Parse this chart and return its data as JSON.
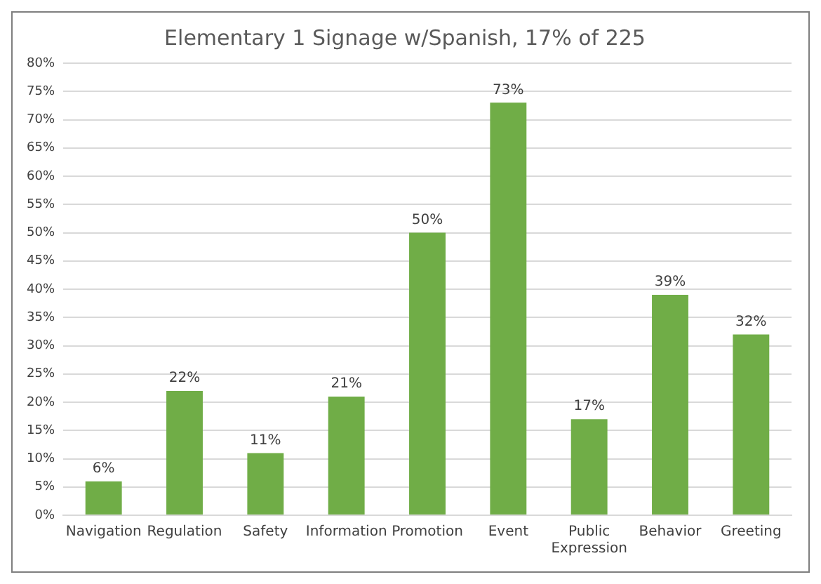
{
  "chart_data": {
    "type": "bar",
    "title": "Elementary 1 Signage w/Spanish, 17% of 225",
    "categories": [
      "Navigation",
      "Regulation",
      "Safety",
      "Information",
      "Promotion",
      "Event",
      "Public Expression",
      "Behavior",
      "Greeting"
    ],
    "values": [
      6,
      22,
      11,
      21,
      50,
      73,
      17,
      39,
      32
    ],
    "value_labels": [
      "6%",
      "22%",
      "11%",
      "21%",
      "50%",
      "73%",
      "17%",
      "39%",
      "32%"
    ],
    "color": "#70ad47",
    "ylim": [
      0,
      80
    ],
    "yticks": [
      {
        "value": 0,
        "label": "0%"
      },
      {
        "value": 5,
        "label": "5%"
      },
      {
        "value": 10,
        "label": "10%"
      },
      {
        "value": 15,
        "label": "15%"
      },
      {
        "value": 20,
        "label": "20%"
      },
      {
        "value": 25,
        "label": "25%"
      },
      {
        "value": 30,
        "label": "30%"
      },
      {
        "value": 35,
        "label": "35%"
      },
      {
        "value": 40,
        "label": "40%"
      },
      {
        "value": 45,
        "label": "45%"
      },
      {
        "value": 50,
        "label": "50%"
      },
      {
        "value": 55,
        "label": "55%"
      },
      {
        "value": 60,
        "label": "60%"
      },
      {
        "value": 65,
        "label": "65%"
      },
      {
        "value": 70,
        "label": "70%"
      },
      {
        "value": 75,
        "label": "75%"
      },
      {
        "value": 80,
        "label": "80%"
      }
    ],
    "grid": "y"
  }
}
